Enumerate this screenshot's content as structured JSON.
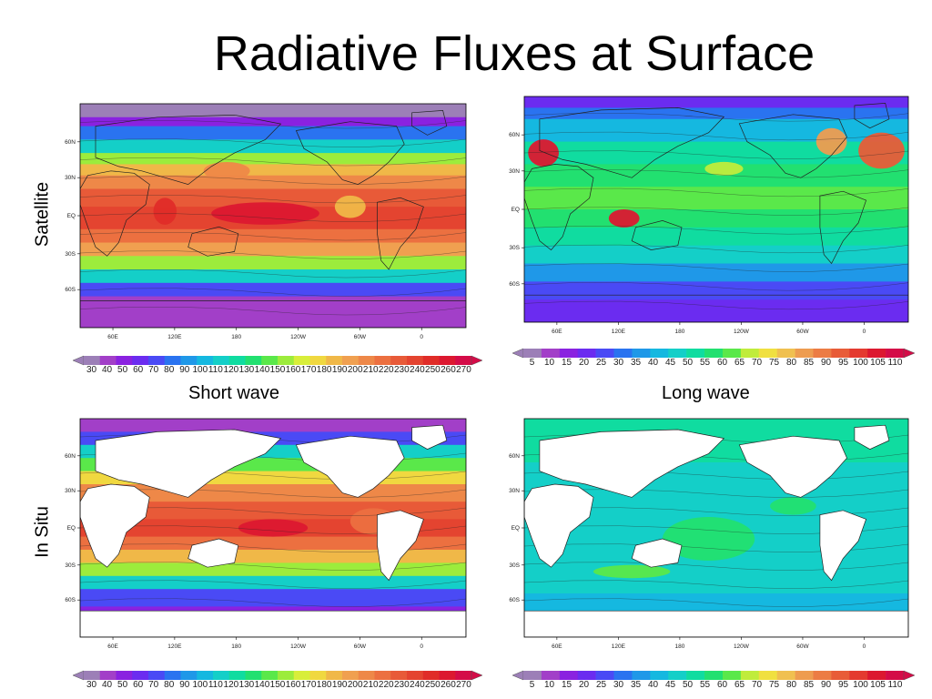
{
  "title": "Radiative Fluxes at Surface",
  "row_labels": {
    "top": "Satellite",
    "bottom": "In Situ"
  },
  "column_labels": {
    "left": "Short wave",
    "right": "Long wave"
  },
  "axes": {
    "lon_ticks": [
      "60E",
      "120E",
      "180",
      "120W",
      "60W",
      "0"
    ],
    "lat_ticks": [
      "60N",
      "30N",
      "EQ",
      "30S",
      "60S"
    ]
  },
  "colorbars": {
    "shortwave": {
      "levels": [
        "30",
        "40",
        "50",
        "60",
        "70",
        "80",
        "90",
        "100",
        "110",
        "120",
        "130",
        "140",
        "150",
        "160",
        "170",
        "180",
        "190",
        "200",
        "210",
        "220",
        "230",
        "240",
        "250",
        "260",
        "270"
      ],
      "colors": [
        "#9c7fb7",
        "#a23fc8",
        "#8a22e0",
        "#6b2cf0",
        "#4a4af5",
        "#2a73f0",
        "#1f98e8",
        "#15b8e0",
        "#14cfc8",
        "#10dca0",
        "#22e070",
        "#5ae84a",
        "#9cec3c",
        "#d8ee3a",
        "#f0d840",
        "#f0b848",
        "#f0a050",
        "#ee8848",
        "#ec7040",
        "#e85a38",
        "#e44430",
        "#e02c28",
        "#dc1830",
        "#d40c48"
      ]
    },
    "longwave": {
      "levels": [
        "5",
        "10",
        "15",
        "20",
        "25",
        "30",
        "35",
        "40",
        "45",
        "50",
        "55",
        "60",
        "65",
        "70",
        "75",
        "80",
        "85",
        "90",
        "95",
        "100",
        "105",
        "110"
      ],
      "colors": [
        "#9c7fb7",
        "#a23fc8",
        "#8a22e0",
        "#6b2cf0",
        "#4a4af5",
        "#2a73f0",
        "#1f98e8",
        "#15b8e0",
        "#14cfc8",
        "#10dca0",
        "#22e070",
        "#5ae84a",
        "#c0ec3c",
        "#f0e040",
        "#f0c050",
        "#ee9c50",
        "#ec7c44",
        "#e85c38",
        "#e43a30",
        "#dc1830",
        "#d40c48"
      ]
    }
  }
}
